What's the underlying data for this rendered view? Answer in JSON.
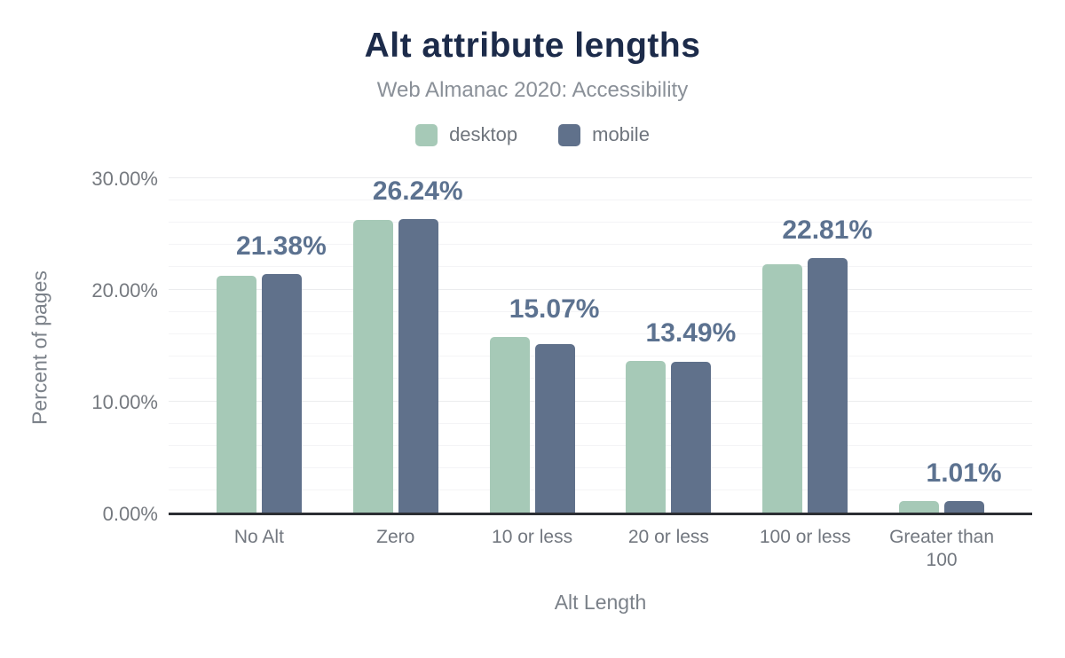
{
  "header": {
    "title": "Alt attribute lengths",
    "subtitle": "Web Almanac 2020: Accessibility"
  },
  "legend": [
    {
      "label": "desktop",
      "color": "#a6c9b7"
    },
    {
      "label": "mobile",
      "color": "#60718b"
    }
  ],
  "axes": {
    "y_title": "Percent of pages",
    "x_title": "Alt Length",
    "y_ticks": [
      "0.00%",
      "10.00%",
      "20.00%",
      "30.00%"
    ]
  },
  "chart_data": {
    "type": "bar",
    "title": "Alt attribute lengths",
    "subtitle": "Web Almanac 2020: Accessibility",
    "categories": [
      "No Alt",
      "Zero",
      "10 or less",
      "20 or less",
      "100 or less",
      "Greater than 100"
    ],
    "series": [
      {
        "name": "desktop",
        "color": "#a6c9b7",
        "values": [
          21.19,
          26.2,
          15.7,
          13.56,
          22.24,
          1.05
        ]
      },
      {
        "name": "mobile",
        "color": "#60718b",
        "values": [
          21.38,
          26.24,
          15.07,
          13.49,
          22.81,
          1.01
        ]
      }
    ],
    "data_labels": {
      "series": "mobile",
      "values": [
        "21.38%",
        "26.24%",
        "15.07%",
        "13.49%",
        "22.81%",
        "1.01%"
      ]
    },
    "xlabel": "Alt Length",
    "ylabel": "Percent of pages",
    "ylim": [
      0,
      30
    ],
    "y_major_step": 10,
    "y_minor_step": 2,
    "grid": true,
    "legend_position": "top",
    "colors": {
      "title": "#1c2b4a",
      "data_label": "#5c7290",
      "axis_text": "#75797f",
      "baseline": "#2c2e33"
    }
  }
}
